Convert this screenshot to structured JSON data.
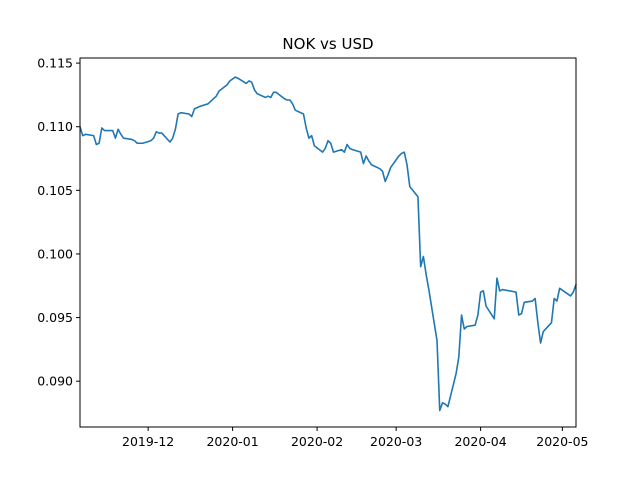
{
  "chart_data": {
    "type": "line",
    "title": "NOK vs USD",
    "xlabel": "",
    "ylabel": "",
    "grid": false,
    "line_color": "#1f77b4",
    "xlim": [
      "2019-11-06",
      "2020-05-06"
    ],
    "ylim": [
      0.0864,
      0.1154
    ],
    "x_ticks": [
      "2019-12",
      "2020-01",
      "2020-02",
      "2020-03",
      "2020-04",
      "2020-05"
    ],
    "x_tick_dates": [
      "2019-12-01",
      "2020-01-01",
      "2020-02-01",
      "2020-03-01",
      "2020-04-01",
      "2020-05-01"
    ],
    "y_ticks": [
      "0.115",
      "0.110",
      "0.105",
      "0.100",
      "0.095",
      "0.090"
    ],
    "y_tick_values": [
      0.115,
      0.11,
      0.105,
      0.1,
      0.095,
      0.09
    ],
    "series": [
      {
        "x": [
          "2019-11-06",
          "2019-11-07",
          "2019-11-08",
          "2019-11-11",
          "2019-11-12",
          "2019-11-13",
          "2019-11-14",
          "2019-11-15",
          "2019-11-18",
          "2019-11-19",
          "2019-11-20",
          "2019-11-21",
          "2019-11-22",
          "2019-11-25",
          "2019-11-26",
          "2019-11-27",
          "2019-11-28",
          "2019-11-29",
          "2019-12-02",
          "2019-12-03",
          "2019-12-04",
          "2019-12-05",
          "2019-12-06",
          "2019-12-09",
          "2019-12-10",
          "2019-12-11",
          "2019-12-12",
          "2019-12-13",
          "2019-12-16",
          "2019-12-17",
          "2019-12-18",
          "2019-12-19",
          "2019-12-20",
          "2019-12-23",
          "2019-12-26",
          "2019-12-27",
          "2019-12-30",
          "2019-12-31",
          "2020-01-02",
          "2020-01-03",
          "2020-01-06",
          "2020-01-07",
          "2020-01-08",
          "2020-01-09",
          "2020-01-10",
          "2020-01-13",
          "2020-01-14",
          "2020-01-15",
          "2020-01-16",
          "2020-01-17",
          "2020-01-20",
          "2020-01-21",
          "2020-01-22",
          "2020-01-23",
          "2020-01-24",
          "2020-01-27",
          "2020-01-28",
          "2020-01-29",
          "2020-01-30",
          "2020-01-31",
          "2020-02-03",
          "2020-02-04",
          "2020-02-05",
          "2020-02-06",
          "2020-02-07",
          "2020-02-10",
          "2020-02-11",
          "2020-02-12",
          "2020-02-13",
          "2020-02-14",
          "2020-02-17",
          "2020-02-18",
          "2020-02-19",
          "2020-02-20",
          "2020-02-21",
          "2020-02-24",
          "2020-02-25",
          "2020-02-26",
          "2020-02-27",
          "2020-02-28",
          "2020-03-02",
          "2020-03-03",
          "2020-03-04",
          "2020-03-05",
          "2020-03-06",
          "2020-03-09",
          "2020-03-10",
          "2020-03-11",
          "2020-03-12",
          "2020-03-13",
          "2020-03-16",
          "2020-03-17",
          "2020-03-18",
          "2020-03-19",
          "2020-03-20",
          "2020-03-23",
          "2020-03-24",
          "2020-03-25",
          "2020-03-26",
          "2020-03-27",
          "2020-03-30",
          "2020-03-31",
          "2020-04-01",
          "2020-04-02",
          "2020-04-03",
          "2020-04-06",
          "2020-04-07",
          "2020-04-08",
          "2020-04-09",
          "2020-04-14",
          "2020-04-15",
          "2020-04-16",
          "2020-04-17",
          "2020-04-20",
          "2020-04-21",
          "2020-04-22",
          "2020-04-23",
          "2020-04-24",
          "2020-04-27",
          "2020-04-28",
          "2020-04-29",
          "2020-04-30",
          "2020-05-04",
          "2020-05-05",
          "2020-05-06"
        ],
        "y": [
          0.11,
          0.1093,
          0.1094,
          0.1093,
          0.1086,
          0.1087,
          0.1099,
          0.1097,
          0.1097,
          0.1091,
          0.1098,
          0.1094,
          0.1091,
          0.109,
          0.1089,
          0.1087,
          0.1087,
          0.1087,
          0.1089,
          0.1091,
          0.1096,
          0.1095,
          0.1095,
          0.1088,
          0.1091,
          0.1098,
          0.111,
          0.1111,
          0.111,
          0.1108,
          0.1114,
          0.1115,
          0.1116,
          0.1118,
          0.1124,
          0.1128,
          0.1133,
          0.1136,
          0.1139,
          0.1138,
          0.1134,
          0.1136,
          0.1135,
          0.1129,
          0.1126,
          0.1123,
          0.1124,
          0.1123,
          0.1127,
          0.1127,
          0.1122,
          0.1121,
          0.1121,
          0.1118,
          0.1113,
          0.111,
          0.1099,
          0.1091,
          0.1093,
          0.1085,
          0.108,
          0.1083,
          0.1089,
          0.1087,
          0.108,
          0.1082,
          0.108,
          0.1086,
          0.1083,
          0.1082,
          0.108,
          0.1071,
          0.1077,
          0.1073,
          0.107,
          0.1067,
          0.1065,
          0.1057,
          0.1062,
          0.1068,
          0.1077,
          0.1079,
          0.108,
          0.107,
          0.1053,
          0.1045,
          0.099,
          0.0998,
          0.0984,
          0.0972,
          0.0932,
          0.0877,
          0.0883,
          0.0882,
          0.088,
          0.0906,
          0.0919,
          0.0952,
          0.0941,
          0.0943,
          0.0944,
          0.0952,
          0.097,
          0.0971,
          0.0959,
          0.0949,
          0.0981,
          0.0971,
          0.0972,
          0.097,
          0.0952,
          0.0953,
          0.0962,
          0.0963,
          0.0965,
          0.0946,
          0.093,
          0.0939,
          0.0946,
          0.0965,
          0.0963,
          0.0973,
          0.0967,
          0.097,
          0.0976
        ]
      }
    ]
  }
}
